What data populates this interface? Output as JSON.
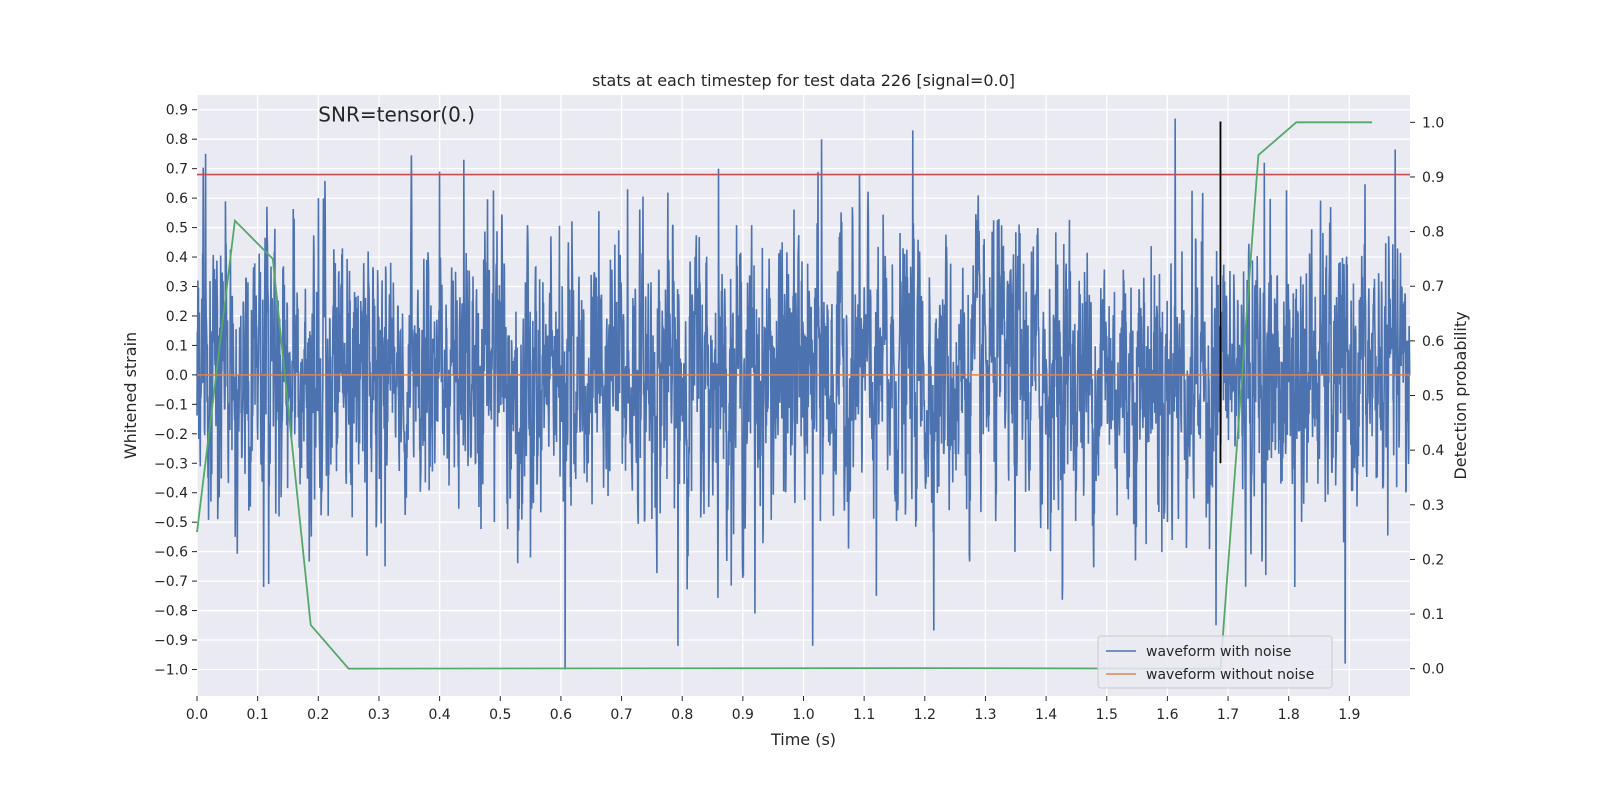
{
  "chart_data": {
    "type": "line",
    "title": "stats at each timestep for test data 226 [signal=0.0]",
    "xlabel": "Time (s)",
    "ylabel": "Whitened strain",
    "y2label": "Detection probability",
    "annotation": "SNR=tensor(0.)",
    "xlim": [
      0.0,
      2.0
    ],
    "ylim": [
      -1.09,
      0.95
    ],
    "y2lim": [
      -0.05,
      1.05
    ],
    "x_ticks": [
      0.0,
      0.1,
      0.2,
      0.3,
      0.4,
      0.5,
      0.6,
      0.7,
      0.8,
      0.9,
      1.0,
      1.1,
      1.2,
      1.3,
      1.4,
      1.5,
      1.6,
      1.7,
      1.8,
      1.9
    ],
    "x_tick_labels": [
      "0.0",
      "0.1",
      "0.2",
      "0.3",
      "0.4",
      "0.5",
      "0.6",
      "0.7",
      "0.8",
      "0.9",
      "1.0",
      "1.1",
      "1.2",
      "1.3",
      "1.4",
      "1.5",
      "1.6",
      "1.7",
      "1.8",
      "1.9"
    ],
    "y_ticks": [
      0.9,
      0.8,
      0.7,
      0.6,
      0.5,
      0.4,
      0.3,
      0.2,
      0.1,
      0.0,
      -0.1,
      -0.2,
      -0.3,
      -0.4,
      -0.5,
      -0.6,
      -0.7,
      -0.8,
      -0.9,
      -1.0
    ],
    "y_tick_labels": [
      "0.9",
      "0.8",
      "0.7",
      "0.6",
      "0.5",
      "0.4",
      "0.3",
      "0.2",
      "0.1",
      "0.0",
      "−0.1",
      "−0.2",
      "−0.3",
      "−0.4",
      "−0.5",
      "−0.6",
      "−0.7",
      "−0.8",
      "−0.9",
      "−1.0"
    ],
    "y2_ticks": [
      1.0,
      0.9,
      0.8,
      0.7,
      0.6,
      0.5,
      0.4,
      0.3,
      0.2,
      0.1,
      0.0
    ],
    "y2_tick_labels": [
      "1.0",
      "0.9",
      "0.8",
      "0.7",
      "0.6",
      "0.5",
      "0.4",
      "0.3",
      "0.2",
      "0.1",
      "0.0"
    ],
    "grid": true,
    "legend_position": "bottom-right",
    "series": [
      {
        "name": "waveform with noise",
        "color": "#4c72b0",
        "axis": "left",
        "sample_rate": 2048,
        "x_start": 0.0,
        "x_end": 2.0,
        "noise_std": 0.23,
        "peaks": [
          [
            0.014,
            0.75
          ],
          [
            0.023,
            -0.43
          ],
          [
            0.063,
            -0.55
          ],
          [
            0.11,
            -0.72
          ],
          [
            0.118,
            -0.71
          ],
          [
            0.16,
            0.53
          ],
          [
            0.2,
            0.6
          ],
          [
            0.31,
            -0.65
          ],
          [
            0.4,
            0.69
          ],
          [
            0.44,
            0.73
          ],
          [
            0.49,
            -0.5
          ],
          [
            0.55,
            -0.62
          ],
          [
            0.607,
            -1.0
          ],
          [
            0.71,
            0.63
          ],
          [
            0.793,
            -0.92
          ],
          [
            0.86,
            0.7
          ],
          [
            0.92,
            -0.81
          ],
          [
            1.015,
            -0.92
          ],
          [
            1.03,
            0.8
          ],
          [
            1.18,
            0.83
          ],
          [
            1.12,
            -0.75
          ],
          [
            1.6,
            -0.5
          ],
          [
            1.613,
            0.87
          ],
          [
            1.68,
            -0.85
          ],
          [
            1.76,
            0.72
          ],
          [
            1.81,
            -0.72
          ],
          [
            1.893,
            -0.98
          ]
        ]
      },
      {
        "name": "waveform without noise",
        "color": "#dd8452",
        "axis": "left",
        "x": [
          0.0,
          2.0
        ],
        "y": [
          0.0,
          0.0
        ]
      },
      {
        "name": "",
        "color": "#55a868",
        "axis": "right",
        "x": [
          0.0,
          0.0625,
          0.125,
          0.1875,
          0.25,
          1.2,
          1.625,
          1.6875,
          1.75,
          1.8125,
          1.9375
        ],
        "y": [
          0.25,
          0.82,
          0.75,
          0.08,
          0.0,
          0.001,
          0.0,
          0.0,
          0.94,
          1.0,
          1.0
        ]
      }
    ],
    "hlines": [
      {
        "y": 0.68,
        "color": "#c44e52",
        "axis": "left"
      }
    ],
    "vlines": [
      {
        "x": 1.6875,
        "y_from": -0.3,
        "y_to": 0.86,
        "color": "#000000",
        "axis": "left"
      }
    ]
  }
}
